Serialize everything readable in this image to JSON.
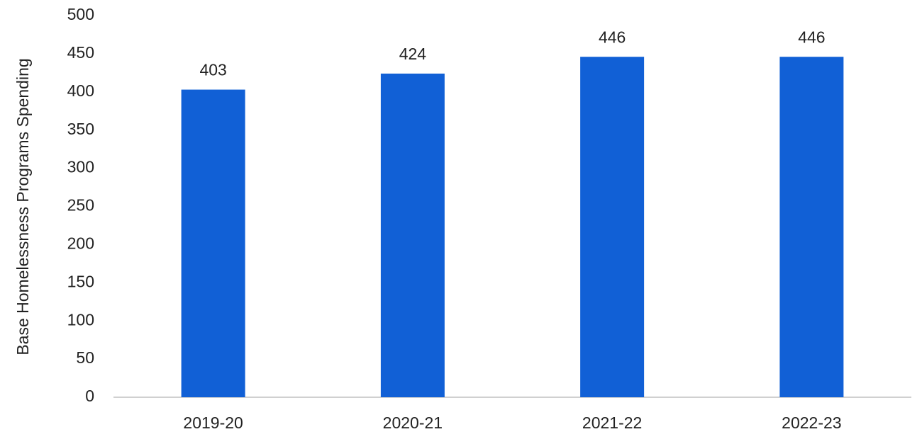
{
  "chart_data": {
    "type": "bar",
    "y_label": "Base Homelessness Programs Spending",
    "categories": [
      "2019-20",
      "2020-21",
      "2021-22",
      "2022-23"
    ],
    "values": [
      403,
      424,
      446,
      446
    ],
    "color": "#1160d6",
    "ylim": [
      0,
      500
    ],
    "yticks": [
      0,
      50,
      100,
      150,
      200,
      250,
      300,
      350,
      400,
      450,
      500
    ],
    "grid": false
  }
}
